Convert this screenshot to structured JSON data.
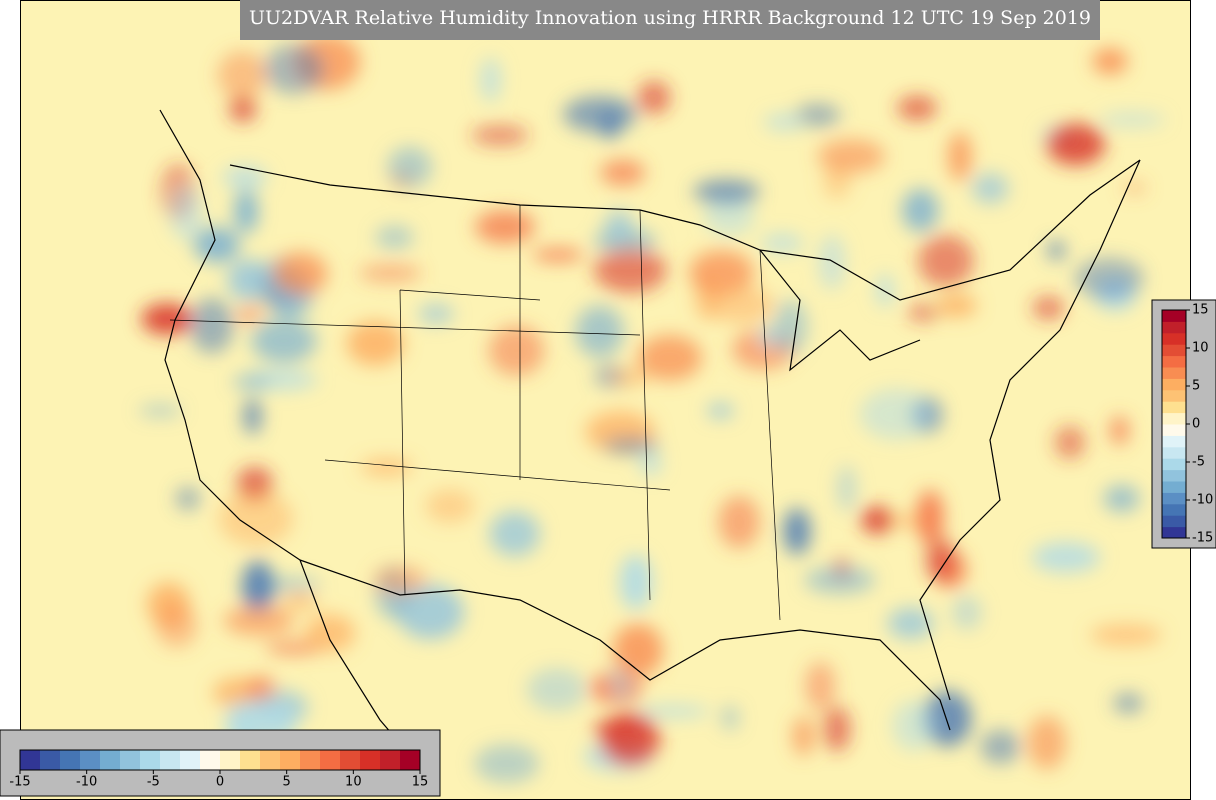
{
  "title": "UU2DVAR Relative Humidity Innovation using HRRR Background 12 UTC 19 Sep 2019",
  "colorbars": [
    {
      "orientation": "horizontal",
      "lim": [
        -15,
        15
      ],
      "ticks": [
        -15,
        -10,
        -5,
        0,
        5,
        10,
        15
      ],
      "colors": [
        "#313695",
        "#3a5aa6",
        "#4575b4",
        "#5b8fc4",
        "#74add1",
        "#91c3dd",
        "#abd9e9",
        "#c8e7f1",
        "#e0f3f8",
        "#fffaeb",
        "#fff4c8",
        "#fee090",
        "#fdc274",
        "#fdae61",
        "#f88d52",
        "#f46d43",
        "#e34d34",
        "#d73027",
        "#c1202a",
        "#a50026"
      ]
    },
    {
      "orientation": "vertical",
      "lim": [
        -15,
        15
      ],
      "ticks": [
        -15,
        -10,
        -5,
        0,
        5,
        10,
        15
      ],
      "colors": [
        "#313695",
        "#3a5aa6",
        "#4575b4",
        "#5b8fc4",
        "#74add1",
        "#91c3dd",
        "#abd9e9",
        "#c8e7f1",
        "#e0f3f8",
        "#fffaeb",
        "#fff4c8",
        "#fee090",
        "#fdc274",
        "#fdae61",
        "#f88d52",
        "#f46d43",
        "#e34d34",
        "#d73027",
        "#c1202a",
        "#a50026"
      ]
    }
  ]
}
